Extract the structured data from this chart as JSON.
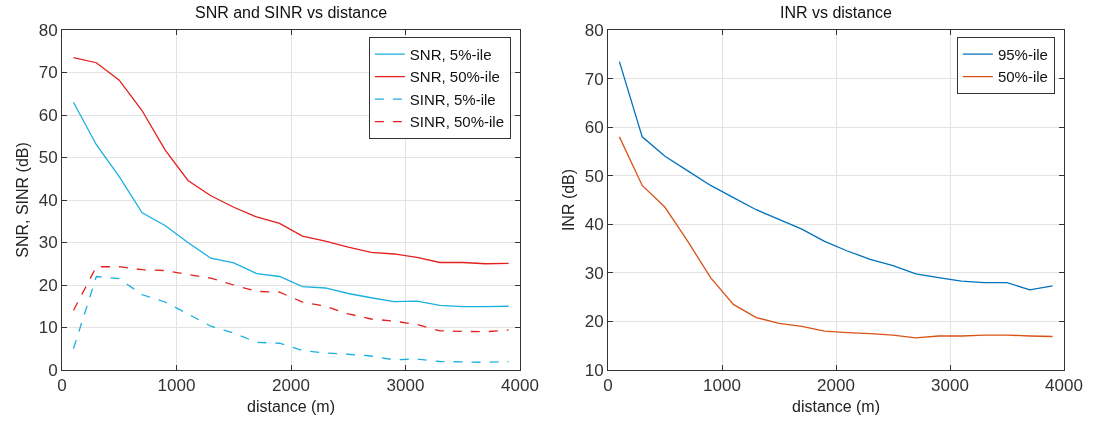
{
  "chart_data": [
    {
      "type": "line",
      "title": "SNR and SINR vs distance",
      "xlabel": "distance (m)",
      "ylabel": "SNR, SINR (dB)",
      "x": [
        100,
        300,
        500,
        700,
        900,
        1100,
        1300,
        1500,
        1700,
        1900,
        2100,
        2300,
        2500,
        2700,
        2900,
        3100,
        3300,
        3500,
        3700,
        3900
      ],
      "series": [
        {
          "name": "SNR, 5%-ile",
          "color": "#1ab0e0",
          "line_style": "solid",
          "values": [
            63,
            53,
            45.5,
            37,
            34,
            30,
            26.3,
            25.2,
            22.7,
            22,
            19.6,
            19.3,
            18,
            17,
            16.1,
            16.2,
            15.2,
            14.9,
            14.9,
            15
          ]
        },
        {
          "name": "SNR, 50%-ile",
          "color": "#e4201c",
          "line_style": "solid",
          "values": [
            73.5,
            72.3,
            68.2,
            61,
            51.8,
            44.6,
            41,
            38.3,
            36,
            34.5,
            31.5,
            30.3,
            28.9,
            27.7,
            27.3,
            26.5,
            25.3,
            25.3,
            25,
            25.1
          ]
        },
        {
          "name": "SINR, 5%-ile",
          "color": "#1ab0e0",
          "line_style": "dashed",
          "values": [
            5,
            22,
            21.5,
            17.7,
            16,
            13.2,
            10.3,
            8.7,
            6.5,
            6.3,
            4.6,
            4,
            3.7,
            3.3,
            2.4,
            2.6,
            2,
            1.9,
            1.8,
            2
          ]
        },
        {
          "name": "SINR, 50%-ile",
          "color": "#e4201c",
          "line_style": "dashed",
          "values": [
            14,
            24.3,
            24.3,
            23.6,
            23.4,
            22.5,
            21.6,
            20,
            18.5,
            18.3,
            16,
            15,
            13.2,
            12,
            11.5,
            10.7,
            9.2,
            9.1,
            9,
            9.4
          ]
        }
      ],
      "xlim": [
        0,
        4000
      ],
      "xticks": [
        0,
        1000,
        2000,
        3000,
        4000
      ],
      "ylim": [
        0,
        80
      ],
      "yticks": [
        0,
        10,
        20,
        30,
        40,
        50,
        60,
        70,
        80
      ],
      "grid": true,
      "legend": "top right",
      "marker": "none"
    },
    {
      "type": "line",
      "title": "INR vs distance",
      "xlabel": "distance (m)",
      "ylabel": "INR (dB)",
      "x": [
        100,
        300,
        500,
        700,
        900,
        1100,
        1300,
        1500,
        1700,
        1900,
        2100,
        2300,
        2500,
        2700,
        2900,
        3100,
        3300,
        3500,
        3700,
        3900
      ],
      "series": [
        {
          "name": "95%-ile",
          "color": "#0072bd",
          "line_style": "solid",
          "values": [
            73.5,
            58,
            54,
            51,
            48,
            45.5,
            43,
            41,
            39,
            36.5,
            34.5,
            32.8,
            31.5,
            29.8,
            29,
            28.3,
            28,
            28,
            26.5,
            27.3
          ]
        },
        {
          "name": "50%-ile",
          "color": "#d95319",
          "line_style": "solid",
          "values": [
            58,
            48,
            43.5,
            36.5,
            29,
            23.5,
            20.8,
            19.6,
            19,
            18,
            17.7,
            17.5,
            17.2,
            16.6,
            17,
            17,
            17.2,
            17.2,
            17,
            16.9
          ]
        }
      ],
      "xlim": [
        0,
        4000
      ],
      "xticks": [
        0,
        1000,
        2000,
        3000,
        4000
      ],
      "ylim": [
        10,
        80
      ],
      "yticks": [
        10,
        20,
        30,
        40,
        50,
        60,
        70,
        80
      ],
      "grid": true,
      "legend": "top right",
      "marker": "none"
    }
  ]
}
